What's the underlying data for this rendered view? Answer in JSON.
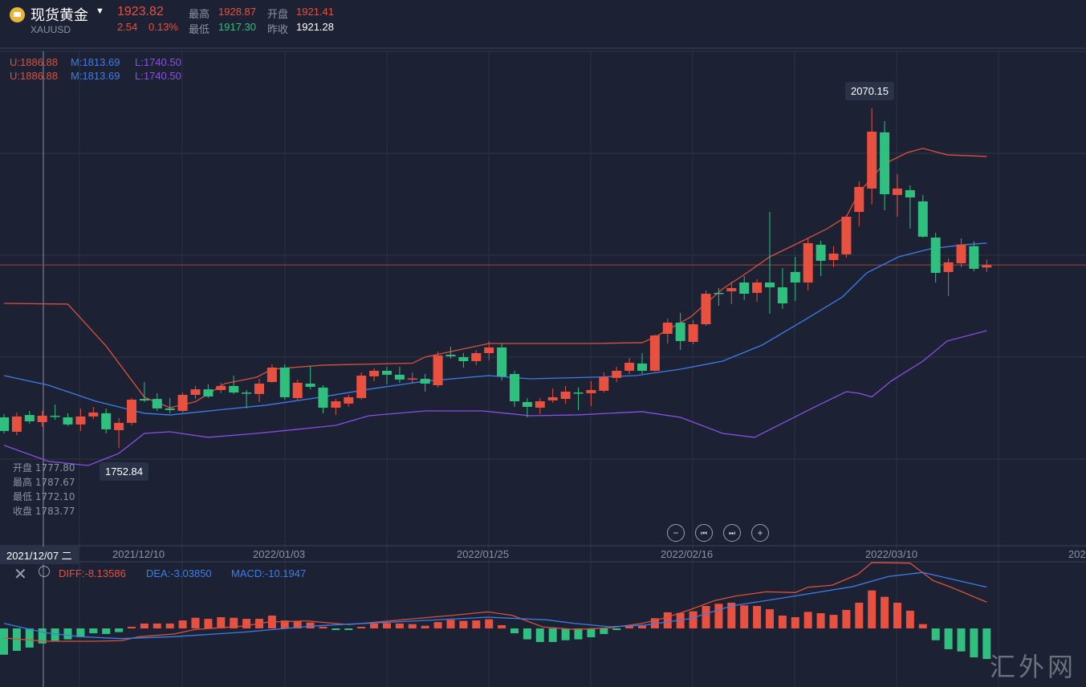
{
  "header": {
    "title": "现货黄金",
    "symbol": "XAUUSD",
    "price": "1923.82",
    "change": "2.54",
    "change_pct": "0.13%",
    "high_label": "最高",
    "high": "1928.87",
    "open_label": "开盘",
    "open": "1921.41",
    "low_label": "最低",
    "low": "1917.30",
    "prev_close_label": "昨收",
    "prev_close": "1921.28"
  },
  "boll": {
    "rows": [
      {
        "u": "U:1886.88",
        "m": "M:1813.69",
        "l": "L:1740.50"
      },
      {
        "u": "U:1886.88",
        "m": "M:1813.69",
        "l": "L:1740.50"
      }
    ]
  },
  "crosshair": {
    "date": "2021/12/07 二",
    "ohlc": [
      {
        "label": "开盘",
        "value": "1777.80"
      },
      {
        "label": "最高",
        "value": "1787.67"
      },
      {
        "label": "最低",
        "value": "1772.10"
      },
      {
        "label": "收盘",
        "value": "1783.77"
      }
    ]
  },
  "markers": {
    "max": "2070.15",
    "min": "1752.84"
  },
  "macd_labels": {
    "diff": "DIFF:-8.13586",
    "dea": "DEA:-3.03850",
    "macd": "MACD:-10.1947"
  },
  "controls": {
    "zoom_out": "−",
    "prev": "⏮",
    "next": "⏭",
    "zoom_in": "+"
  },
  "watermark": "汇外网",
  "colors": {
    "up": "#e8503f",
    "down": "#2fbf7f",
    "upper": "#d9513e",
    "mid": "#3d7de8",
    "lower": "#8a4fe6",
    "bg": "#1c2233"
  },
  "chart_data": {
    "type": "candlestick",
    "x_ticks": [
      "2021/12/10",
      "2022/01/03",
      "2022/01/25",
      "2022/02/16",
      "2022/03/10",
      "202"
    ],
    "ylim": [
      1750,
      2075
    ],
    "last_price": 1923.82,
    "candles_ohlc": [
      [
        1781.4,
        1784.4,
        1766.4,
        1768.6
      ],
      [
        1767.9,
        1785.9,
        1764.9,
        1782.2
      ],
      [
        1783.6,
        1787.4,
        1775.4,
        1777.7
      ],
      [
        1776.9,
        1787.4,
        1772.4,
        1782.9
      ],
      [
        1782.9,
        1793.4,
        1779.2,
        1782.5
      ],
      [
        1781.4,
        1785.2,
        1773.2,
        1774.7
      ],
      [
        1774.7,
        1789.6,
        1768.6,
        1782.2
      ],
      [
        1782.2,
        1791.2,
        1779.9,
        1785.9
      ],
      [
        1785.2,
        1789.6,
        1766.4,
        1770.2
      ],
      [
        1769.4,
        1780.7,
        1752.84,
        1776.2
      ],
      [
        1776.2,
        1799.4,
        1773.9,
        1797.9
      ],
      [
        1798.6,
        1814.4,
        1795.6,
        1797.1
      ],
      [
        1798.6,
        1803.9,
        1787.4,
        1789.7
      ],
      [
        1789.7,
        1799.4,
        1785.2,
        1788.2
      ],
      [
        1787.4,
        1804.6,
        1785.9,
        1802.4
      ],
      [
        1802.4,
        1810.7,
        1798.6,
        1807.6
      ],
      [
        1807.6,
        1812.2,
        1799.4,
        1800.9
      ],
      [
        1806.9,
        1813.7,
        1803.9,
        1810.7
      ],
      [
        1810.7,
        1820.4,
        1803.2,
        1804.6
      ],
      [
        1804.6,
        1806.9,
        1789.6,
        1804.3
      ],
      [
        1803.2,
        1817.4,
        1795.7,
        1812.9
      ],
      [
        1814.4,
        1830.9,
        1813.7,
        1827.9
      ],
      [
        1827.9,
        1830.9,
        1797.9,
        1800.2
      ],
      [
        1799.4,
        1816.7,
        1797.9,
        1813.7
      ],
      [
        1812.9,
        1829.4,
        1807.6,
        1809.9
      ],
      [
        1809.2,
        1811.4,
        1785.2,
        1790.4
      ],
      [
        1790.4,
        1798.6,
        1783.6,
        1796.4
      ],
      [
        1794.2,
        1802.4,
        1791.2,
        1800.2
      ],
      [
        1799.4,
        1823.4,
        1797.9,
        1820.4
      ],
      [
        1819.7,
        1827.2,
        1815.2,
        1824.9
      ],
      [
        1824.9,
        1828.7,
        1812.2,
        1821.2
      ],
      [
        1821.2,
        1828.7,
        1813.7,
        1816.7
      ],
      [
        1817.4,
        1823.4,
        1812.9,
        1817.8
      ],
      [
        1817.4,
        1821.9,
        1805.4,
        1812.9
      ],
      [
        1811.4,
        1842.9,
        1809.2,
        1839.2
      ],
      [
        1839.9,
        1847.4,
        1836.2,
        1838.4
      ],
      [
        1837.7,
        1841.4,
        1827.9,
        1833.9
      ],
      [
        1833.9,
        1844.4,
        1830.2,
        1841.4
      ],
      [
        1841.4,
        1852.7,
        1834.7,
        1846.7
      ],
      [
        1846.7,
        1850.4,
        1815.9,
        1819.7
      ],
      [
        1821.9,
        1824.9,
        1791.2,
        1796.4
      ],
      [
        1795.7,
        1799.4,
        1781.4,
        1791.2
      ],
      [
        1790.4,
        1799.4,
        1784.4,
        1796.4
      ],
      [
        1797.2,
        1808.4,
        1794.9,
        1800.2
      ],
      [
        1798.6,
        1810.7,
        1794.2,
        1805.4
      ],
      [
        1804.6,
        1809.2,
        1788.2,
        1804.3
      ],
      [
        1803.9,
        1815.2,
        1791.9,
        1806.9
      ],
      [
        1806.2,
        1823.4,
        1804.6,
        1818.9
      ],
      [
        1818.2,
        1828.7,
        1814.4,
        1824.9
      ],
      [
        1824.9,
        1836.9,
        1821.9,
        1832.4
      ],
      [
        1831.7,
        1841.4,
        1821.9,
        1824.9
      ],
      [
        1824.9,
        1858.7,
        1824.2,
        1857.9
      ],
      [
        1859.4,
        1873.7,
        1850.4,
        1869.9
      ],
      [
        1869.9,
        1878.9,
        1844.4,
        1852.7
      ],
      [
        1851.9,
        1872.2,
        1849.7,
        1868.4
      ],
      [
        1868.4,
        1899.9,
        1866.9,
        1896.9
      ],
      [
        1897.7,
        1902.2,
        1885.7,
        1897.3
      ],
      [
        1899.2,
        1908.2,
        1887.2,
        1902.2
      ],
      [
        1907.4,
        1913.4,
        1890.9,
        1896.9
      ],
      [
        1897.7,
        1910.4,
        1889.4,
        1907.4
      ],
      [
        1907.4,
        1973.4,
        1878.2,
        1902.9
      ],
      [
        1902.9,
        1920.9,
        1882.7,
        1887.9
      ],
      [
        1917.2,
        1931.4,
        1890.2,
        1907.4
      ],
      [
        1907.4,
        1948.7,
        1899.9,
        1944.2
      ],
      [
        1942.7,
        1946.4,
        1913.4,
        1927.7
      ],
      [
        1928.4,
        1941.2,
        1921.7,
        1934.4
      ],
      [
        1933.7,
        1970.4,
        1930.7,
        1968.9
      ],
      [
        1973.4,
        2001.9,
        1959.9,
        1996.7
      ],
      [
        1995.2,
        2070.15,
        1980.2,
        2048.4
      ],
      [
        2047.7,
        2058.2,
        1974.9,
        1989.9
      ],
      [
        1989.2,
        2008.7,
        1968.9,
        1995.2
      ],
      [
        1993.7,
        1998.2,
        1957.7,
        1986.9
      ],
      [
        1983.2,
        1989.2,
        1949.4,
        1950.2
      ],
      [
        1949.4,
        1953.9,
        1907.4,
        1916.4
      ],
      [
        1917.2,
        1929.9,
        1894.7,
        1926.2
      ],
      [
        1925.4,
        1948.7,
        1921.7,
        1942.9
      ],
      [
        1941.4,
        1945.9,
        1917.9,
        1920.2
      ],
      [
        1921.41,
        1928.87,
        1917.3,
        1923.82
      ]
    ],
    "boll_upper": [
      [
        0,
        1887.9
      ],
      [
        5,
        1887.2
      ],
      [
        8,
        1848
      ],
      [
        11,
        1800.2
      ],
      [
        13,
        1790.4
      ],
      [
        15,
        1796
      ],
      [
        17.3,
        1812.9
      ],
      [
        19.8,
        1818.9
      ],
      [
        21,
        1826.4
      ],
      [
        25,
        1830.2
      ],
      [
        32,
        1832
      ],
      [
        33,
        1837.7
      ],
      [
        38,
        1850.4
      ],
      [
        46,
        1850.4
      ],
      [
        50,
        1851.2
      ],
      [
        51,
        1856.4
      ],
      [
        53.8,
        1875.2
      ],
      [
        56.3,
        1901.4
      ],
      [
        58.2,
        1916.4
      ],
      [
        60,
        1931.4
      ],
      [
        62.6,
        1946.4
      ],
      [
        64.5,
        1957.7
      ],
      [
        66,
        1968.9
      ],
      [
        67,
        1991.4
      ],
      [
        68.9,
        2017.7
      ],
      [
        70.8,
        2028.9
      ],
      [
        72,
        2032.7
      ],
      [
        73.9,
        2026.7
      ],
      [
        77,
        2025.2
      ]
    ],
    "boll_mid": [
      [
        0,
        1820.4
      ],
      [
        3.5,
        1811.4
      ],
      [
        7.2,
        1796.4
      ],
      [
        11,
        1785.2
      ],
      [
        13,
        1783.6
      ],
      [
        17.3,
        1788.9
      ],
      [
        20.5,
        1792.7
      ],
      [
        24.8,
        1800.2
      ],
      [
        28.6,
        1807.7
      ],
      [
        33,
        1815.2
      ],
      [
        38,
        1820.4
      ],
      [
        41.2,
        1817.4
      ],
      [
        46.2,
        1818.9
      ],
      [
        49.5,
        1820.4
      ],
      [
        53,
        1826.4
      ],
      [
        56.3,
        1833.9
      ],
      [
        59.4,
        1848.9
      ],
      [
        62.6,
        1871.4
      ],
      [
        65.7,
        1893.9
      ],
      [
        67.6,
        1916.4
      ],
      [
        70.1,
        1931.4
      ],
      [
        72.6,
        1938.9
      ],
      [
        75.2,
        1942.7
      ],
      [
        77,
        1944.2
      ]
    ],
    "boll_lower": [
      [
        0,
        1755.2
      ],
      [
        3.5,
        1740.2
      ],
      [
        6.6,
        1736.4
      ],
      [
        9,
        1747.7
      ],
      [
        11,
        1766.4
      ],
      [
        13,
        1767.9
      ],
      [
        16,
        1762.7
      ],
      [
        19.8,
        1766.4
      ],
      [
        23,
        1770.2
      ],
      [
        26,
        1773.9
      ],
      [
        28.6,
        1782.9
      ],
      [
        33,
        1787.4
      ],
      [
        37.5,
        1787.4
      ],
      [
        41.2,
        1782.9
      ],
      [
        45,
        1783.7
      ],
      [
        50,
        1786.7
      ],
      [
        53,
        1781.4
      ],
      [
        56.3,
        1766.4
      ],
      [
        58.8,
        1762.7
      ],
      [
        61.3,
        1777.7
      ],
      [
        63.8,
        1792.7
      ],
      [
        66,
        1805.4
      ],
      [
        67,
        1803.9
      ],
      [
        68,
        1800.5
      ],
      [
        69.5,
        1815.2
      ],
      [
        72,
        1833.9
      ],
      [
        73.9,
        1852.7
      ],
      [
        77,
        1862.4
      ]
    ],
    "macd_hist": [
      -17.8,
      -15.2,
      -13.0,
      -10.2,
      -8.3,
      -7.4,
      -6.0,
      -3.3,
      -3.8,
      -2.5,
      1.1,
      3.3,
      3.3,
      3.3,
      5.4,
      7.2,
      6.5,
      7.6,
      7.2,
      6.5,
      6.5,
      8.7,
      5.4,
      5.1,
      4.0,
      1.1,
      -1.1,
      -1.1,
      1.1,
      3.3,
      3.6,
      3.3,
      2.9,
      1.8,
      4.3,
      5.8,
      5.1,
      5.4,
      6.2,
      2.2,
      -3.3,
      -7.4,
      -9.2,
      -9.2,
      -8.0,
      -7.4,
      -6.0,
      -3.8,
      -1.1,
      1.4,
      1.8,
      6.9,
      10.9,
      10.5,
      11.6,
      15.2,
      16.7,
      17.4,
      15.6,
      15.2,
      13.0,
      8.7,
      7.6,
      11.2,
      10.3,
      9.2,
      12.5,
      17.4,
      25.7,
      21.4,
      17.4,
      12.0,
      2.9,
      -8.0,
      -14.1,
      -15.6,
      -19.6,
      -20.7
    ],
    "diff": [
      [
        0,
        -6.5
      ],
      [
        3.2,
        -8.7
      ],
      [
        7,
        -8.7
      ],
      [
        9.2,
        -8.3
      ],
      [
        10.6,
        -5.6
      ],
      [
        13.3,
        -3.8
      ],
      [
        15,
        -0.7
      ],
      [
        18.8,
        1.6
      ],
      [
        20.7,
        4.3
      ],
      [
        23.7,
        5.1
      ],
      [
        27,
        2.6
      ],
      [
        29.7,
        4.7
      ],
      [
        35.2,
        8.9
      ],
      [
        37.9,
        11.2
      ],
      [
        39.8,
        8.9
      ],
      [
        42.2,
        1.0
      ],
      [
        44.7,
        -0.7
      ],
      [
        47.5,
        0.4
      ],
      [
        50,
        3.4
      ],
      [
        51.8,
        7.1
      ],
      [
        53.7,
        12.5
      ],
      [
        55.7,
        18.9
      ],
      [
        57.3,
        21.9
      ],
      [
        59.7,
        24.8
      ],
      [
        62,
        24.3
      ],
      [
        63,
        27.9
      ],
      [
        64.9,
        29.3
      ],
      [
        66.9,
        36.6
      ],
      [
        68,
        44.6
      ],
      [
        71,
        44.2
      ],
      [
        72.8,
        32.4
      ],
      [
        74.2,
        27.9
      ],
      [
        77,
        17.8
      ]
    ],
    "dea": [
      [
        0,
        3.4
      ],
      [
        3.2,
        -2.9
      ],
      [
        6,
        -5.6
      ],
      [
        9.2,
        -6.9
      ],
      [
        13.3,
        -5.6
      ],
      [
        18.8,
        -2.5
      ],
      [
        24.2,
        1.6
      ],
      [
        27,
        2.9
      ],
      [
        32.4,
        5.1
      ],
      [
        37.9,
        7.6
      ],
      [
        42.5,
        5.8
      ],
      [
        44.7,
        3.4
      ],
      [
        47.5,
        1.1
      ],
      [
        50.2,
        2.2
      ],
      [
        53.7,
        6.5
      ],
      [
        57,
        15.2
      ],
      [
        61.1,
        20.7
      ],
      [
        66.5,
        28.3
      ],
      [
        69.3,
        35.2
      ],
      [
        72,
        37.9
      ],
      [
        77,
        27.9
      ]
    ]
  }
}
